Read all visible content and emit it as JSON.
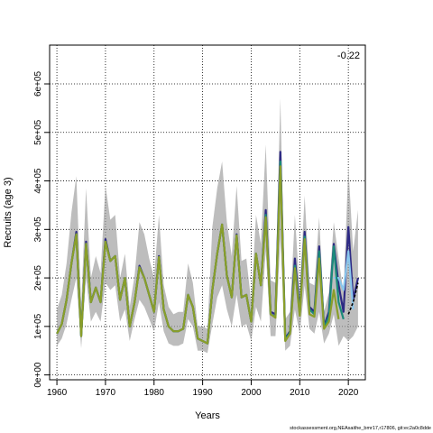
{
  "chart_data": {
    "type": "line",
    "xlabel": "Years",
    "ylabel": "Recruits (age 3)",
    "corner_value": "-0.22",
    "credit": "stockassessment.org,NEAsaithe_bmr17,r17806, git:ec2a0c8dde",
    "xlim": [
      1958.5,
      2023.5
    ],
    "ylim": [
      -10000,
      680000
    ],
    "x_ticks": [
      1960,
      1970,
      1980,
      1990,
      2000,
      2010,
      2020
    ],
    "y_ticks": [
      0,
      100000,
      200000,
      300000,
      400000,
      500000,
      600000
    ],
    "y_tick_labels": [
      "0e+00",
      "1e+05",
      "2e+05",
      "3e+05",
      "4e+05",
      "5e+05",
      "6e+05"
    ],
    "grid": true,
    "x": [
      1960,
      1961,
      1962,
      1963,
      1964,
      1965,
      1966,
      1967,
      1968,
      1969,
      1970,
      1971,
      1972,
      1973,
      1974,
      1975,
      1976,
      1977,
      1978,
      1979,
      1980,
      1981,
      1982,
      1983,
      1984,
      1985,
      1986,
      1987,
      1988,
      1989,
      1990,
      1991,
      1992,
      1993,
      1994,
      1995,
      1996,
      1997,
      1998,
      1999,
      2000,
      2001,
      2002,
      2003,
      2004,
      2005,
      2006,
      2007,
      2008,
      2009,
      2010,
      2011,
      2012,
      2013,
      2014,
      2015,
      2016,
      2017,
      2018,
      2019,
      2020,
      2021,
      2022
    ],
    "series": [
      {
        "color": "#9a9a9a",
        "role": "confidence band",
        "lower": [
          60000,
          75000,
          105000,
          155000,
          200000,
          55000,
          200000,
          110000,
          130000,
          110000,
          190000,
          175000,
          185000,
          110000,
          135000,
          70000,
          115000,
          155000,
          140000,
          115000,
          90000,
          150000,
          90000,
          65000,
          60000,
          60000,
          65000,
          115000,
          100000,
          50000,
          50000,
          45000,
          105000,
          160000,
          185000,
          135000,
          100000,
          165000,
          100000,
          105000,
          70000,
          140000,
          110000,
          255000,
          80000,
          80000,
          280000,
          50000,
          60000,
          135000,
          85000,
          185000,
          95000,
          85000,
          130000,
          65000,
          85000,
          125000,
          60000,
          80000,
          70000,
          80000,
          100000
        ],
        "upper": [
          135000,
          165000,
          230000,
          335000,
          410000,
          145000,
          385000,
          200000,
          245000,
          210000,
          390000,
          320000,
          330000,
          200000,
          250000,
          140000,
          205000,
          315000,
          290000,
          240000,
          200000,
          330000,
          185000,
          140000,
          125000,
          130000,
          130000,
          230000,
          190000,
          100000,
          100000,
          95000,
          305000,
          385000,
          440000,
          315000,
          245000,
          390000,
          235000,
          240000,
          150000,
          330000,
          270000,
          475000,
          195000,
          190000,
          570000,
          115000,
          130000,
          330000,
          170000,
          370000,
          190000,
          185000,
          325000,
          130000,
          170000,
          315000,
          240000,
          170000,
          430000,
          255000,
          340000
        ]
      },
      {
        "name": "",
        "color": "#2e2a84",
        "values": [
          85000,
          105000,
          155000,
          230000,
          295000,
          80000,
          275000,
          150000,
          180000,
          150000,
          280000,
          235000,
          245000,
          155000,
          200000,
          100000,
          150000,
          225000,
          200000,
          165000,
          130000,
          245000,
          135000,
          100000,
          90000,
          90000,
          95000,
          165000,
          140000,
          75000,
          70000,
          65000,
          175000,
          250000,
          310000,
          205000,
          160000,
          290000,
          160000,
          165000,
          110000,
          250000,
          185000,
          340000,
          130000,
          125000,
          460000,
          75000,
          90000,
          240000,
          130000,
          295000,
          140000,
          130000,
          265000,
          100000,
          130000,
          270000,
          185000,
          130000,
          305000,
          155000,
          200000
        ]
      },
      {
        "name": "",
        "color": "#8ac6ec",
        "values": [
          null,
          null,
          null,
          null,
          null,
          null,
          null,
          null,
          null,
          null,
          null,
          null,
          null,
          null,
          null,
          null,
          null,
          null,
          null,
          null,
          null,
          null,
          null,
          null,
          null,
          null,
          null,
          null,
          null,
          null,
          null,
          null,
          null,
          null,
          null,
          null,
          null,
          null,
          null,
          null,
          null,
          null,
          null,
          null,
          null,
          null,
          null,
          null,
          null,
          null,
          null,
          null,
          null,
          null,
          null,
          null,
          null,
          200000,
          200000,
          175000,
          255000,
          135000,
          null
        ]
      },
      {
        "name": "",
        "color": "#1b8a7a",
        "values": [
          85000,
          105000,
          155000,
          230000,
          290000,
          80000,
          270000,
          150000,
          180000,
          150000,
          275000,
          235000,
          245000,
          155000,
          200000,
          100000,
          150000,
          222000,
          200000,
          165000,
          130000,
          243000,
          135000,
          100000,
          90000,
          90000,
          95000,
          165000,
          140000,
          75000,
          70000,
          65000,
          175000,
          250000,
          310000,
          205000,
          160000,
          288000,
          160000,
          165000,
          110000,
          250000,
          185000,
          330000,
          125000,
          120000,
          440000,
          72000,
          88000,
          225000,
          125000,
          285000,
          135000,
          125000,
          255000,
          98000,
          120000,
          265000,
          150000,
          115000,
          null,
          null,
          null
        ]
      },
      {
        "name": "",
        "color": "#8a9e2a",
        "values": [
          85000,
          105000,
          155000,
          230000,
          290000,
          80000,
          270000,
          150000,
          180000,
          150000,
          275000,
          235000,
          245000,
          155000,
          200000,
          100000,
          150000,
          222000,
          200000,
          165000,
          130000,
          243000,
          135000,
          100000,
          90000,
          90000,
          95000,
          165000,
          140000,
          75000,
          70000,
          65000,
          175000,
          250000,
          310000,
          205000,
          160000,
          288000,
          160000,
          165000,
          110000,
          250000,
          185000,
          325000,
          125000,
          118000,
          430000,
          70000,
          85000,
          220000,
          122000,
          280000,
          125000,
          120000,
          240000,
          95000,
          110000,
          175000,
          115000,
          null,
          null,
          null,
          null
        ]
      },
      {
        "name": "",
        "color": "#000000",
        "dashed": true,
        "values": [
          null,
          null,
          null,
          null,
          null,
          null,
          null,
          null,
          null,
          null,
          null,
          null,
          null,
          null,
          null,
          null,
          null,
          null,
          null,
          null,
          null,
          null,
          null,
          null,
          null,
          null,
          null,
          null,
          null,
          null,
          null,
          null,
          null,
          null,
          null,
          null,
          null,
          null,
          null,
          null,
          null,
          null,
          null,
          null,
          null,
          null,
          null,
          null,
          null,
          null,
          null,
          null,
          null,
          null,
          null,
          null,
          null,
          null,
          null,
          null,
          125000,
          150000,
          190000
        ]
      }
    ]
  }
}
